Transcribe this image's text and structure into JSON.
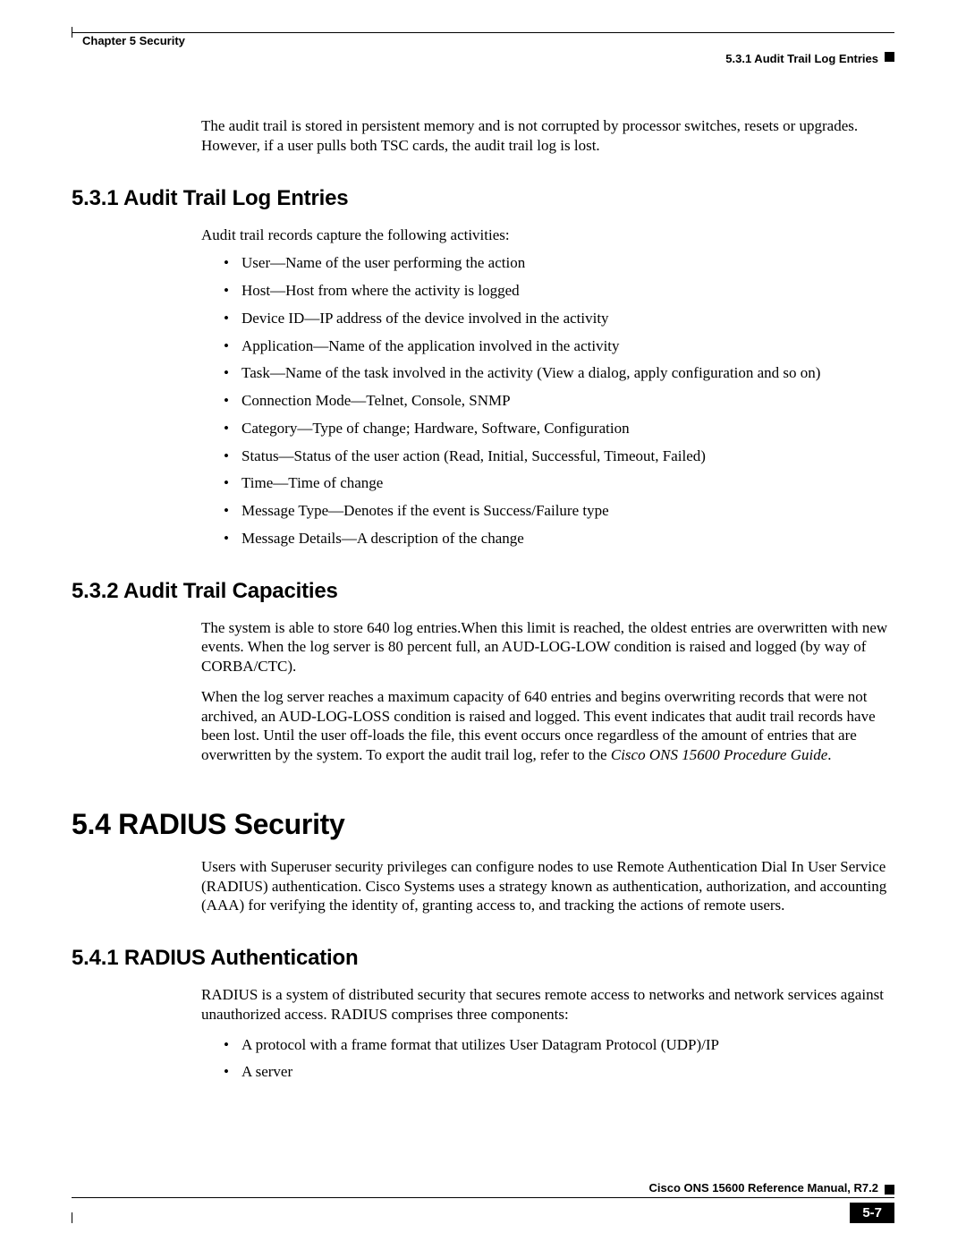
{
  "header": {
    "chapter": "Chapter 5 Security",
    "section": "5.3.1  Audit Trail Log Entries"
  },
  "intro_para": "The audit trail is stored in persistent memory and is not corrupted by processor switches, resets or upgrades. However, if a user pulls both TSC cards, the audit trail log is lost.",
  "s531": {
    "heading": "5.3.1  Audit Trail Log Entries",
    "lead": "Audit trail records capture the following activities:",
    "items": [
      "User—Name of the user performing the action",
      "Host—Host from where the activity is logged",
      "Device ID—IP address of the device involved in the activity",
      "Application—Name of the application involved in the activity",
      "Task—Name of the task involved in the activity (View a dialog, apply configuration and so on)",
      "Connection Mode—Telnet, Console, SNMP",
      "Category—Type of change; Hardware, Software, Configuration",
      "Status—Status of the user action (Read, Initial, Successful, Timeout, Failed)",
      "Time—Time of change",
      "Message Type—Denotes if the event is Success/Failure type",
      "Message Details—A description of the change"
    ]
  },
  "s532": {
    "heading": "5.3.2  Audit Trail Capacities",
    "p1": "The system is able to store 640 log entries.When this limit is reached, the oldest entries are overwritten with new events. When the log server is 80 percent full, an AUD-LOG-LOW condition is raised and logged (by way of CORBA/CTC).",
    "p2a": "When the log server reaches a maximum capacity of 640 entries and begins overwriting records that were not archived, an AUD-LOG-LOSS condition is raised and logged. This event indicates that audit trail records have been lost. Until the user off-loads the file, this event occurs once regardless of the amount of entries that are overwritten by the system. To export the audit trail log, refer to the ",
    "p2b_italic": "Cisco ONS 15600 Procedure Guide",
    "p2c": "."
  },
  "s54": {
    "heading": "5.4  RADIUS Security",
    "p1": "Users with Superuser security privileges can configure nodes to use Remote Authentication Dial In User Service (RADIUS) authentication. Cisco Systems uses a strategy known as authentication, authorization, and accounting (AAA) for verifying the identity of, granting access to, and tracking the actions of remote users."
  },
  "s541": {
    "heading": "5.4.1  RADIUS Authentication",
    "p1": "RADIUS is a system of distributed security that secures remote access to networks and network services against unauthorized access. RADIUS comprises three components:",
    "items": [
      "A protocol with a frame format that utilizes User Datagram Protocol (UDP)/IP",
      "A server"
    ]
  },
  "footer": {
    "manual": "Cisco ONS 15600 Reference Manual, R7.2",
    "page": "5-7"
  },
  "colors": {
    "text": "#000000",
    "background": "#ffffff",
    "pagebox_bg": "#000000",
    "pagebox_fg": "#ffffff"
  },
  "fonts": {
    "body_family": "Times New Roman",
    "body_size_pt": 12,
    "heading_family": "Arial",
    "h1_size_pt": 24,
    "h2_size_pt": 18,
    "header_footer_size_pt": 9
  }
}
